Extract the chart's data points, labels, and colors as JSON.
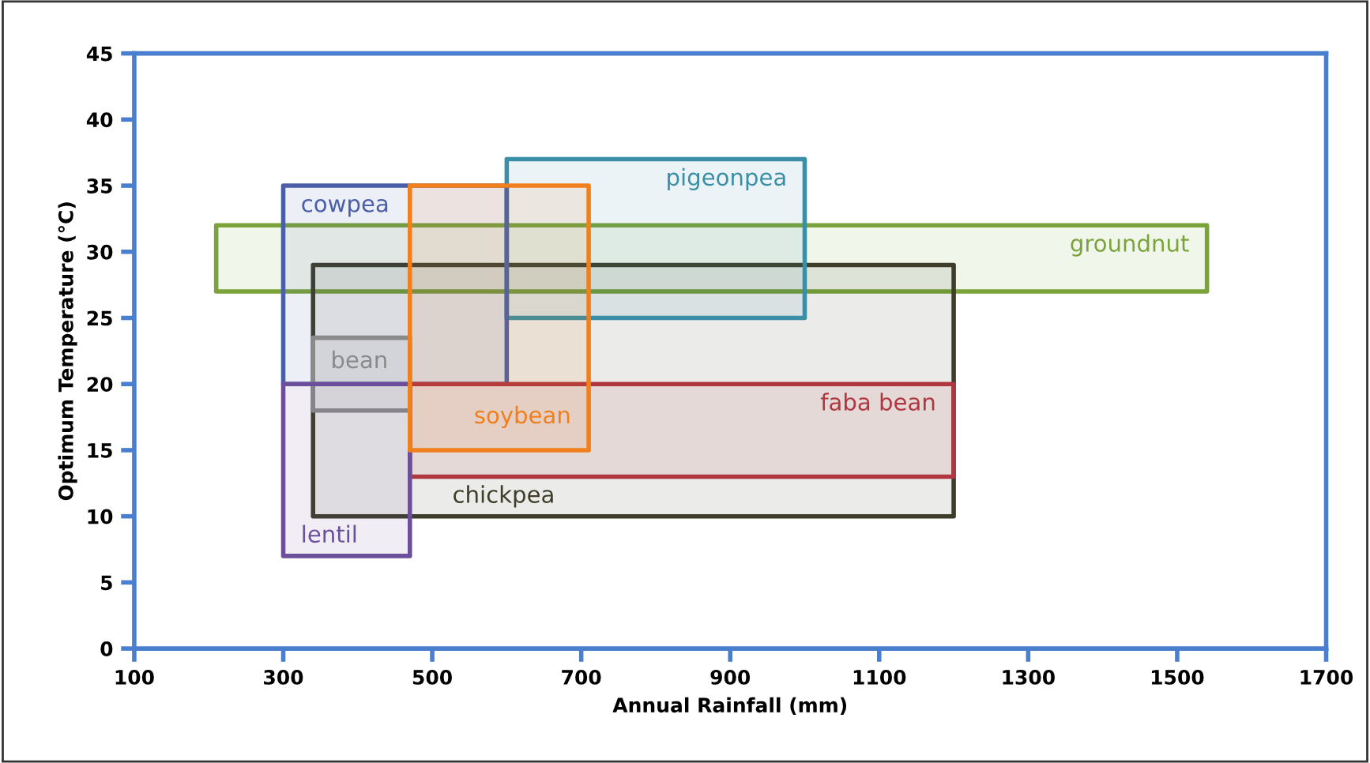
{
  "chart_data": {
    "type": "area",
    "xlabel": "Annual Rainfall (mm)",
    "ylabel": "Optimum Temperature (°C)",
    "xlim": [
      100,
      1700
    ],
    "ylim": [
      0,
      45
    ],
    "xticks": [
      100,
      300,
      500,
      700,
      900,
      1100,
      1300,
      1500,
      1700
    ],
    "yticks": [
      0,
      5,
      10,
      15,
      20,
      25,
      30,
      35,
      40,
      45
    ],
    "grid": false,
    "legend": false,
    "series": [
      {
        "name": "groundnut",
        "color": "#7aa33a",
        "x": [
          210,
          210,
          1540,
          1540,
          210
        ],
        "values": [
          27,
          32,
          32,
          27,
          27
        ]
      },
      {
        "name": "chickpea",
        "color": "#3d3d2a",
        "x": [
          340,
          340,
          1200,
          1200,
          340
        ],
        "values": [
          10,
          29,
          29,
          10,
          10
        ]
      },
      {
        "name": "pigeonpea",
        "color": "#3a8ea5",
        "x": [
          600,
          600,
          1000,
          1000,
          600
        ],
        "values": [
          25,
          37,
          37,
          25,
          25
        ]
      },
      {
        "name": "cowpea",
        "color": "#4a5fa8",
        "x": [
          300,
          300,
          600,
          600,
          300
        ],
        "values": [
          20,
          35,
          35,
          20,
          20
        ]
      },
      {
        "name": "faba bean",
        "color": "#b0363f",
        "x": [
          470,
          470,
          1200,
          1200,
          470
        ],
        "values": [
          13,
          20,
          20,
          13,
          13
        ]
      },
      {
        "name": "bean",
        "color": "#8a8a8a",
        "x": [
          340,
          340,
          470,
          470,
          340
        ],
        "values": [
          18,
          23.5,
          23.5,
          18,
          18
        ]
      },
      {
        "name": "lentil",
        "color": "#6b4f9b",
        "x": [
          300,
          300,
          470,
          470,
          300
        ],
        "values": [
          7,
          20,
          20,
          7,
          7
        ]
      },
      {
        "name": "soybean",
        "color": "#f07f1c",
        "x": [
          470,
          470,
          710,
          710,
          470
        ],
        "values": [
          15,
          35,
          35,
          15,
          15
        ]
      }
    ]
  }
}
